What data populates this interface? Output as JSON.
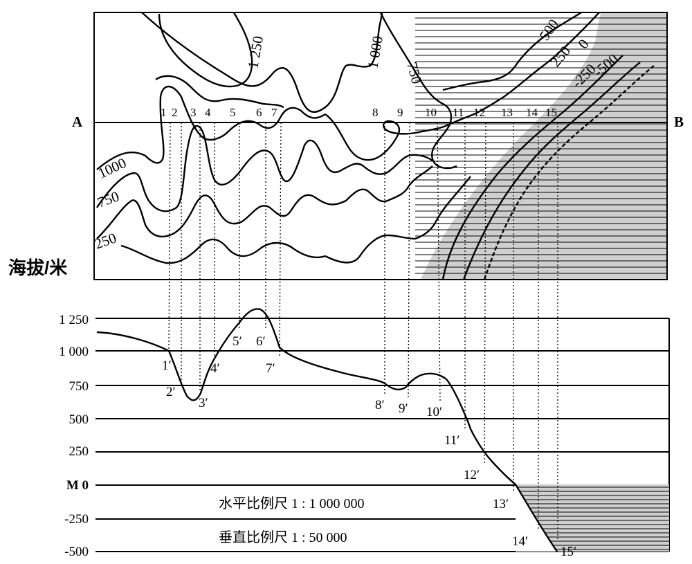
{
  "map": {
    "label_a": "A",
    "label_b": "B",
    "points": [
      "1",
      "2",
      "3",
      "4",
      "5",
      "6",
      "7",
      "8",
      "9",
      "10",
      "11",
      "12",
      "13",
      "14",
      "15"
    ],
    "contour_labels": {
      "c1250": "1 250",
      "c1000_top": "1 000",
      "c750_top": "750",
      "c500_right": "500",
      "c250_right": "250",
      "c0_right": "0",
      "cneg250": "-250",
      "cneg500": "-500",
      "c1000_left": "1000",
      "c750_left": "750",
      "c250_left": "250"
    }
  },
  "profile": {
    "y_axis_title": "海拔/米",
    "ticks": [
      "1 250",
      "1 000",
      "750",
      "500",
      "250",
      "M 0",
      "-250",
      "-500"
    ],
    "points": [
      "1′",
      "2′",
      "3′",
      "4′",
      "5′",
      "6′",
      "7′",
      "8′",
      "9′",
      "10′",
      "11′",
      "12′",
      "13′",
      "14′",
      "15′"
    ]
  },
  "scales": {
    "horizontal": "水平比例尺 1 : 1 000 000",
    "vertical": "垂直比例尺 1 : 50 000"
  },
  "colors": {
    "sea_fill": "#cfcfcf",
    "line": "#000000"
  }
}
